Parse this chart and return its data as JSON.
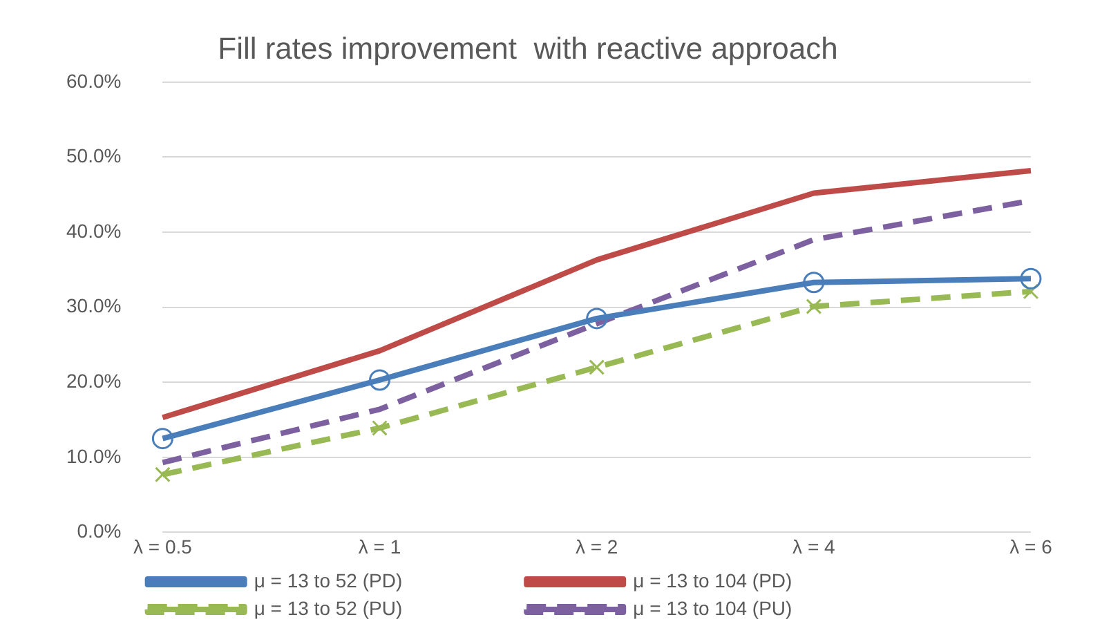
{
  "chart_data": {
    "type": "line",
    "title": "Fill rates improvement  with reactive approach",
    "categories": [
      "λ = 0.5",
      "λ = 1",
      "λ = 2",
      "λ = 4",
      "λ = 6"
    ],
    "series": [
      {
        "name": "μ = 13 to 52 (PD)",
        "color": "#4a7ebb",
        "values": [
          12.5,
          20.3,
          28.5,
          33.3,
          33.8
        ],
        "marker": "circle",
        "line_style": "solid"
      },
      {
        "name": "μ = 13 to 104 (PD)",
        "color": "#be4b48",
        "values": [
          15.3,
          24.2,
          36.3,
          45.2,
          48.2
        ],
        "marker": "none",
        "line_style": "solid"
      },
      {
        "name": "μ = 13 to 52 (PU)",
        "color": "#98b954",
        "values": [
          7.7,
          13.9,
          22.0,
          30.1,
          32.1
        ],
        "marker": "cross",
        "line_style": "dashed"
      },
      {
        "name": "μ = 13 to 104 (PU)",
        "color": "#7d60a0",
        "values": [
          9.3,
          16.4,
          27.8,
          39.0,
          44.2
        ],
        "marker": "none",
        "line_style": "dashed"
      }
    ],
    "ylim": [
      0,
      60
    ],
    "yticks": [
      {
        "value": 0,
        "label": "0.0%"
      },
      {
        "value": 10,
        "label": "10.0%"
      },
      {
        "value": 20,
        "label": "20.0%"
      },
      {
        "value": 30,
        "label": "30.0%"
      },
      {
        "value": 40,
        "label": "40.0%"
      },
      {
        "value": 50,
        "label": "50.0%"
      },
      {
        "value": 60,
        "label": "60.0%"
      }
    ],
    "grid": "y",
    "legend": "bottom"
  }
}
